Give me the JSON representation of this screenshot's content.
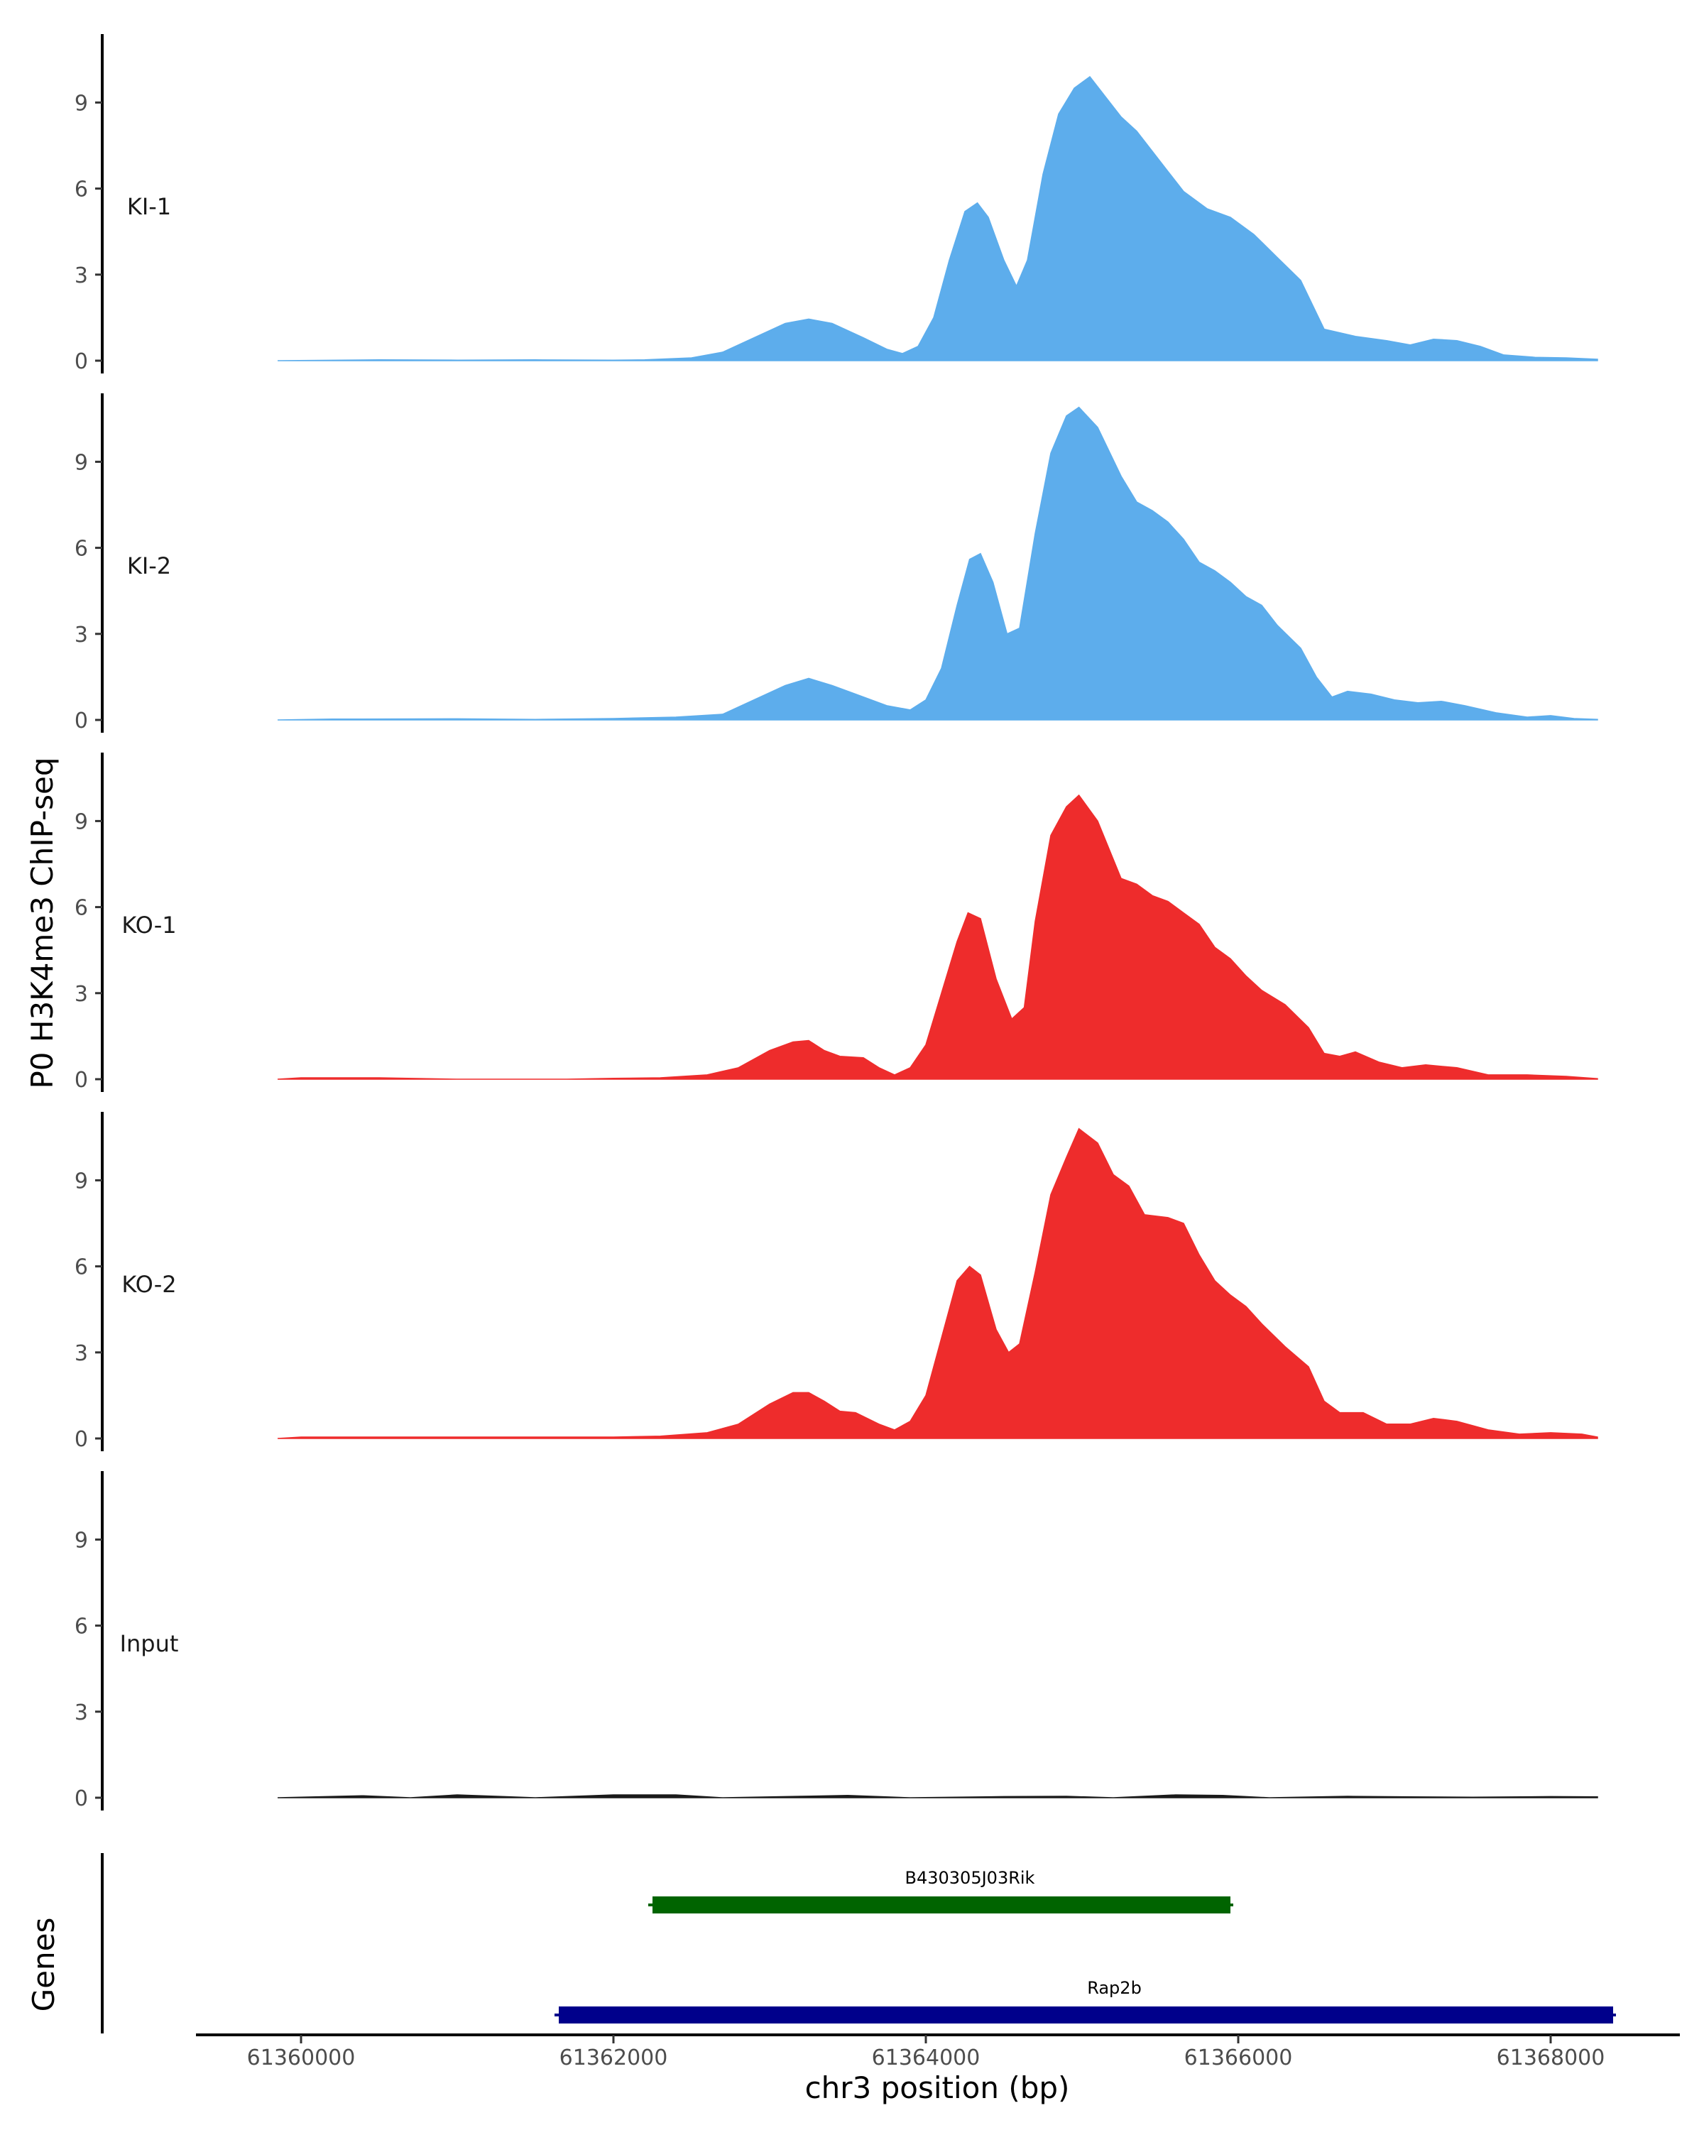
{
  "chart_data": {
    "type": "area",
    "ylabel": "P0 H3K4me3 ChIP-seq",
    "xlabel": "chr3 position (bp)",
    "xlim": [
      61359600,
      61368400
    ],
    "x_ticks": [
      61360000,
      61362000,
      61364000,
      61366000,
      61368000
    ],
    "x_tick_labels": [
      "61360000",
      "61362000",
      "61364000",
      "61366000",
      "61368000"
    ],
    "ylim": [
      0,
      11.5
    ],
    "y_ticks": [
      0,
      3,
      6,
      9
    ],
    "y_tick_labels": [
      "0",
      "3",
      "6",
      "9"
    ],
    "tracks": [
      {
        "name": "KI-1",
        "color": "#5DADEC",
        "points": [
          [
            61359850,
            0
          ],
          [
            61360500,
            0.03
          ],
          [
            61361000,
            0.02
          ],
          [
            61361500,
            0.03
          ],
          [
            61362000,
            0.02
          ],
          [
            61362200,
            0.03
          ],
          [
            61362500,
            0.1
          ],
          [
            61362700,
            0.3
          ],
          [
            61362900,
            0.8
          ],
          [
            61363100,
            1.3
          ],
          [
            61363250,
            1.45
          ],
          [
            61363400,
            1.3
          ],
          [
            61363600,
            0.8
          ],
          [
            61363750,
            0.4
          ],
          [
            61363850,
            0.25
          ],
          [
            61363950,
            0.5
          ],
          [
            61364050,
            1.5
          ],
          [
            61364150,
            3.5
          ],
          [
            61364250,
            5.2
          ],
          [
            61364330,
            5.5
          ],
          [
            61364400,
            5.0
          ],
          [
            61364500,
            3.5
          ],
          [
            61364580,
            2.6
          ],
          [
            61364650,
            3.5
          ],
          [
            61364750,
            6.5
          ],
          [
            61364850,
            8.6
          ],
          [
            61364950,
            9.5
          ],
          [
            61365050,
            9.9
          ],
          [
            61365150,
            9.2
          ],
          [
            61365250,
            8.5
          ],
          [
            61365350,
            8.0
          ],
          [
            61365450,
            7.3
          ],
          [
            61365550,
            6.6
          ],
          [
            61365650,
            5.9
          ],
          [
            61365800,
            5.3
          ],
          [
            61365950,
            5.0
          ],
          [
            61366100,
            4.4
          ],
          [
            61366250,
            3.6
          ],
          [
            61366400,
            2.8
          ],
          [
            61366550,
            1.1
          ],
          [
            61366750,
            0.85
          ],
          [
            61366950,
            0.7
          ],
          [
            61367100,
            0.55
          ],
          [
            61367250,
            0.75
          ],
          [
            61367400,
            0.7
          ],
          [
            61367550,
            0.5
          ],
          [
            61367700,
            0.2
          ],
          [
            61367900,
            0.12
          ],
          [
            61368100,
            0.1
          ],
          [
            61368300,
            0.05
          ]
        ]
      },
      {
        "name": "KI-2",
        "color": "#5DADEC",
        "points": [
          [
            61359850,
            0
          ],
          [
            61360200,
            0.03
          ],
          [
            61361000,
            0.04
          ],
          [
            61361500,
            0.02
          ],
          [
            61362000,
            0.05
          ],
          [
            61362400,
            0.1
          ],
          [
            61362700,
            0.2
          ],
          [
            61362900,
            0.7
          ],
          [
            61363100,
            1.2
          ],
          [
            61363250,
            1.45
          ],
          [
            61363400,
            1.2
          ],
          [
            61363550,
            0.9
          ],
          [
            61363750,
            0.5
          ],
          [
            61363900,
            0.35
          ],
          [
            61364000,
            0.7
          ],
          [
            61364100,
            1.8
          ],
          [
            61364200,
            4.0
          ],
          [
            61364280,
            5.6
          ],
          [
            61364350,
            5.8
          ],
          [
            61364430,
            4.8
          ],
          [
            61364520,
            3.0
          ],
          [
            61364600,
            3.2
          ],
          [
            61364700,
            6.5
          ],
          [
            61364800,
            9.3
          ],
          [
            61364900,
            10.6
          ],
          [
            61364980,
            10.9
          ],
          [
            61365100,
            10.2
          ],
          [
            61365250,
            8.5
          ],
          [
            61365350,
            7.6
          ],
          [
            61365450,
            7.3
          ],
          [
            61365550,
            6.9
          ],
          [
            61365650,
            6.3
          ],
          [
            61365750,
            5.5
          ],
          [
            61365850,
            5.2
          ],
          [
            61365950,
            4.8
          ],
          [
            61366050,
            4.3
          ],
          [
            61366150,
            4.0
          ],
          [
            61366250,
            3.3
          ],
          [
            61366400,
            2.5
          ],
          [
            61366500,
            1.5
          ],
          [
            61366600,
            0.8
          ],
          [
            61366700,
            1.0
          ],
          [
            61366850,
            0.9
          ],
          [
            61367000,
            0.7
          ],
          [
            61367150,
            0.6
          ],
          [
            61367300,
            0.65
          ],
          [
            61367450,
            0.5
          ],
          [
            61367650,
            0.25
          ],
          [
            61367850,
            0.1
          ],
          [
            61368000,
            0.15
          ],
          [
            61368150,
            0.05
          ],
          [
            61368300,
            0.02
          ]
        ]
      },
      {
        "name": "KO-1",
        "color": "#EE2C2C",
        "points": [
          [
            61359850,
            0
          ],
          [
            61360000,
            0.05
          ],
          [
            61360500,
            0.05
          ],
          [
            61361000,
            0
          ],
          [
            61361700,
            0
          ],
          [
            61362000,
            0.03
          ],
          [
            61362300,
            0.05
          ],
          [
            61362600,
            0.15
          ],
          [
            61362800,
            0.4
          ],
          [
            61363000,
            1.0
          ],
          [
            61363150,
            1.3
          ],
          [
            61363250,
            1.35
          ],
          [
            61363350,
            1.0
          ],
          [
            61363450,
            0.8
          ],
          [
            61363600,
            0.75
          ],
          [
            61363700,
            0.4
          ],
          [
            61363800,
            0.15
          ],
          [
            61363900,
            0.4
          ],
          [
            61364000,
            1.2
          ],
          [
            61364100,
            3.0
          ],
          [
            61364200,
            4.8
          ],
          [
            61364270,
            5.8
          ],
          [
            61364350,
            5.6
          ],
          [
            61364450,
            3.5
          ],
          [
            61364550,
            2.1
          ],
          [
            61364630,
            2.5
          ],
          [
            61364700,
            5.5
          ],
          [
            61364800,
            8.5
          ],
          [
            61364900,
            9.5
          ],
          [
            61364980,
            9.9
          ],
          [
            61365100,
            9.0
          ],
          [
            61365250,
            7.0
          ],
          [
            61365350,
            6.8
          ],
          [
            61365450,
            6.4
          ],
          [
            61365550,
            6.2
          ],
          [
            61365650,
            5.8
          ],
          [
            61365750,
            5.4
          ],
          [
            61365850,
            4.6
          ],
          [
            61365950,
            4.2
          ],
          [
            61366050,
            3.6
          ],
          [
            61366150,
            3.1
          ],
          [
            61366300,
            2.6
          ],
          [
            61366450,
            1.8
          ],
          [
            61366550,
            0.9
          ],
          [
            61366650,
            0.8
          ],
          [
            61366750,
            0.95
          ],
          [
            61366900,
            0.6
          ],
          [
            61367050,
            0.4
          ],
          [
            61367200,
            0.5
          ],
          [
            61367400,
            0.4
          ],
          [
            61367600,
            0.15
          ],
          [
            61367850,
            0.15
          ],
          [
            61368100,
            0.1
          ],
          [
            61368300,
            0.02
          ]
        ]
      },
      {
        "name": "KO-2",
        "color": "#EE2C2C",
        "points": [
          [
            61359850,
            0
          ],
          [
            61360000,
            0.05
          ],
          [
            61360500,
            0.05
          ],
          [
            61361000,
            0.05
          ],
          [
            61361500,
            0.05
          ],
          [
            61362000,
            0.05
          ],
          [
            61362300,
            0.08
          ],
          [
            61362600,
            0.2
          ],
          [
            61362800,
            0.5
          ],
          [
            61363000,
            1.2
          ],
          [
            61363150,
            1.6
          ],
          [
            61363250,
            1.6
          ],
          [
            61363350,
            1.3
          ],
          [
            61363450,
            0.95
          ],
          [
            61363550,
            0.9
          ],
          [
            61363700,
            0.5
          ],
          [
            61363800,
            0.3
          ],
          [
            61363900,
            0.6
          ],
          [
            61364000,
            1.5
          ],
          [
            61364100,
            3.5
          ],
          [
            61364200,
            5.5
          ],
          [
            61364280,
            6.0
          ],
          [
            61364350,
            5.7
          ],
          [
            61364450,
            3.8
          ],
          [
            61364530,
            3.0
          ],
          [
            61364600,
            3.3
          ],
          [
            61364700,
            5.8
          ],
          [
            61364800,
            8.5
          ],
          [
            61364900,
            9.8
          ],
          [
            61364980,
            10.8
          ],
          [
            61365100,
            10.3
          ],
          [
            61365200,
            9.2
          ],
          [
            61365300,
            8.8
          ],
          [
            61365400,
            7.8
          ],
          [
            61365550,
            7.7
          ],
          [
            61365650,
            7.5
          ],
          [
            61365750,
            6.4
          ],
          [
            61365850,
            5.5
          ],
          [
            61365950,
            5.0
          ],
          [
            61366050,
            4.6
          ],
          [
            61366150,
            4.0
          ],
          [
            61366300,
            3.2
          ],
          [
            61366450,
            2.5
          ],
          [
            61366550,
            1.3
          ],
          [
            61366650,
            0.9
          ],
          [
            61366800,
            0.9
          ],
          [
            61366950,
            0.5
          ],
          [
            61367100,
            0.5
          ],
          [
            61367250,
            0.7
          ],
          [
            61367400,
            0.6
          ],
          [
            61367600,
            0.3
          ],
          [
            61367800,
            0.15
          ],
          [
            61368000,
            0.2
          ],
          [
            61368200,
            0.15
          ],
          [
            61368300,
            0.05
          ]
        ]
      },
      {
        "name": "Input",
        "color": "#1a1a1a",
        "points": [
          [
            61359850,
            0
          ],
          [
            61360400,
            0.07
          ],
          [
            61360700,
            0
          ],
          [
            61361000,
            0.1
          ],
          [
            61361500,
            0
          ],
          [
            61362000,
            0.1
          ],
          [
            61362400,
            0.1
          ],
          [
            61362700,
            0
          ],
          [
            61363200,
            0.05
          ],
          [
            61363500,
            0.08
          ],
          [
            61363900,
            0
          ],
          [
            61364500,
            0.04
          ],
          [
            61364900,
            0.05
          ],
          [
            61365200,
            0
          ],
          [
            61365600,
            0.1
          ],
          [
            61365900,
            0.08
          ],
          [
            61366200,
            0
          ],
          [
            61366700,
            0.05
          ],
          [
            61367100,
            0.03
          ],
          [
            61367500,
            0.02
          ],
          [
            61368000,
            0.04
          ],
          [
            61368300,
            0.03
          ]
        ]
      }
    ],
    "genes": {
      "label": "Genes",
      "items": [
        {
          "name": "B430305J03Rik",
          "start": 61362250,
          "end": 61365950,
          "strand": "+",
          "color": "#006400",
          "row": 1
        },
        {
          "name": "Rap2b",
          "start": 61361650,
          "end": 61368400,
          "strand": "+",
          "color": "#00008B",
          "row": 2
        }
      ]
    }
  }
}
